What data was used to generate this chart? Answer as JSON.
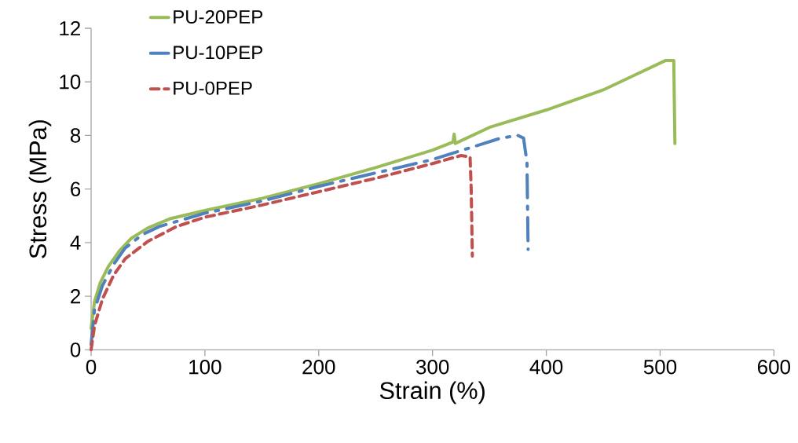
{
  "chart_data": {
    "type": "line",
    "xlabel": "Strain (%)",
    "ylabel": "Stress (MPa)",
    "xlim": [
      0,
      600
    ],
    "xticks": [
      0,
      100,
      200,
      300,
      400,
      500,
      600
    ],
    "ylim": [
      0,
      12
    ],
    "yticks": [
      0,
      2,
      4,
      6,
      8,
      10,
      12
    ],
    "grid": false,
    "legend": "top left",
    "marker": "none",
    "series": [
      {
        "name": "PU-20PEP",
        "color": "#9bbb59",
        "line_style": "solid",
        "x": [
          0,
          3,
          8,
          15,
          25,
          35,
          50,
          70,
          100,
          150,
          200,
          250,
          300,
          318,
          319,
          320,
          350,
          400,
          450,
          480,
          505,
          512,
          513
        ],
        "values": [
          0.8,
          1.8,
          2.5,
          3.1,
          3.7,
          4.15,
          4.55,
          4.9,
          5.2,
          5.65,
          6.2,
          6.8,
          7.45,
          7.75,
          8.05,
          7.7,
          8.3,
          8.95,
          9.7,
          10.3,
          10.8,
          10.8,
          7.7
        ]
      },
      {
        "name": "PU-10PEP",
        "color": "#4f81bd",
        "line_style": "dashed",
        "x": [
          0,
          3,
          10,
          20,
          30,
          45,
          60,
          100,
          150,
          200,
          250,
          300,
          330,
          360,
          375,
          380,
          383,
          384
        ],
        "values": [
          0.2,
          1.5,
          2.4,
          3.2,
          3.8,
          4.3,
          4.6,
          5.1,
          5.55,
          6.1,
          6.6,
          7.1,
          7.5,
          7.9,
          8.0,
          7.9,
          7.0,
          3.75
        ]
      },
      {
        "name": "PU-0PEP",
        "color": "#c0504d",
        "line_style": "dotted",
        "x": [
          0,
          3,
          10,
          20,
          30,
          50,
          75,
          100,
          150,
          200,
          250,
          300,
          325,
          333,
          334,
          335
        ],
        "values": [
          0,
          0.9,
          1.9,
          2.8,
          3.4,
          4.05,
          4.6,
          4.95,
          5.4,
          5.9,
          6.4,
          6.95,
          7.25,
          7.2,
          6.0,
          3.5
        ]
      }
    ]
  }
}
